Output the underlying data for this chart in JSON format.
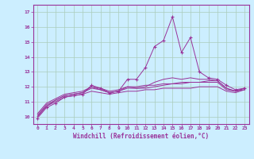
{
  "title": "",
  "xlabel": "Windchill (Refroidissement éolien,°C)",
  "ylabel": "",
  "background_color": "#cceeff",
  "line_color": "#993399",
  "grid_color": "#aaccbb",
  "ylim": [
    9.5,
    17.5
  ],
  "xlim": [
    -0.5,
    23.5
  ],
  "yticks": [
    10,
    11,
    12,
    13,
    14,
    15,
    16,
    17
  ],
  "xticks": [
    0,
    1,
    2,
    3,
    4,
    5,
    6,
    7,
    8,
    9,
    10,
    11,
    12,
    13,
    14,
    15,
    16,
    17,
    18,
    19,
    20,
    21,
    22,
    23
  ],
  "curve1": [
    9.9,
    10.6,
    10.9,
    11.3,
    11.4,
    11.5,
    12.1,
    11.9,
    11.6,
    11.7,
    12.5,
    12.5,
    13.3,
    14.7,
    15.1,
    16.7,
    14.3,
    15.3,
    13.0,
    12.6,
    12.5,
    12.1,
    11.8,
    11.9
  ],
  "curve2": [
    10.0,
    10.7,
    11.1,
    11.4,
    11.5,
    11.6,
    12.0,
    11.8,
    11.6,
    11.7,
    12.0,
    11.9,
    12.0,
    12.3,
    12.5,
    12.6,
    12.5,
    12.6,
    12.5,
    12.5,
    12.4,
    11.9,
    11.7,
    11.9
  ],
  "curve3": [
    10.1,
    10.8,
    11.1,
    11.4,
    11.5,
    11.6,
    11.9,
    11.8,
    11.6,
    11.7,
    11.9,
    11.9,
    11.9,
    12.0,
    12.1,
    12.2,
    12.2,
    12.3,
    12.3,
    12.3,
    12.3,
    11.8,
    11.7,
    11.8
  ],
  "curve4": [
    10.2,
    10.9,
    11.2,
    11.5,
    11.6,
    11.7,
    12.0,
    11.9,
    11.7,
    11.8,
    12.0,
    12.0,
    12.1,
    12.1,
    12.2,
    12.2,
    12.3,
    12.3,
    12.3,
    12.4,
    12.4,
    11.9,
    11.7,
    11.9
  ],
  "curve5": [
    10.0,
    10.7,
    11.0,
    11.3,
    11.4,
    11.5,
    11.7,
    11.6,
    11.5,
    11.6,
    11.7,
    11.7,
    11.8,
    11.8,
    11.9,
    11.9,
    11.9,
    11.9,
    12.0,
    12.0,
    12.0,
    11.7,
    11.6,
    11.8
  ]
}
